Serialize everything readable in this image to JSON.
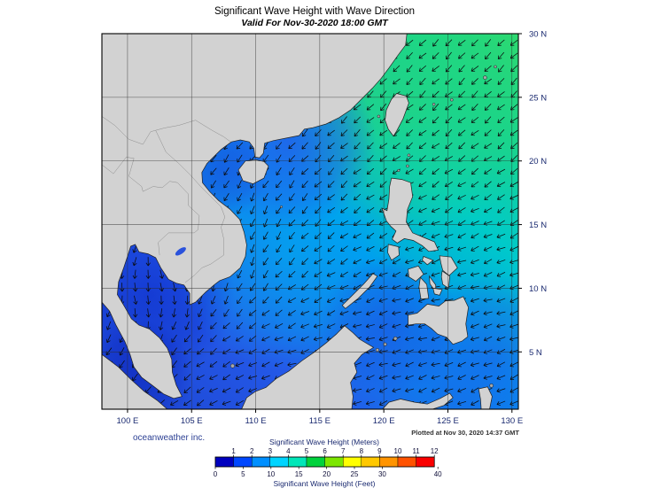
{
  "title": "Significant Wave Height with Wave Direction",
  "subtitle": "Valid For Nov-30-2020 18:00 GMT",
  "branding": "oceanweather inc.",
  "plotted_at": "Plotted at Nov 30, 2020 14:37 GMT",
  "axis": {
    "lon_ticks": [
      "100 E",
      "105 E",
      "110 E",
      "115 E",
      "120 E",
      "125 E",
      "130 E"
    ],
    "lat_ticks": [
      "30 N",
      "25 N",
      "20 N",
      "15 N",
      "10 N",
      "5 N"
    ]
  },
  "legend": {
    "meters_label": "Significant Wave Height (Meters)",
    "feet_label": "Significant Wave Height (Feet)",
    "meters_ticks": [
      1,
      2,
      3,
      4,
      5,
      6,
      7,
      8,
      9,
      10,
      11,
      12
    ],
    "feet_ticks": [
      0,
      5,
      10,
      15,
      20,
      25,
      30,
      40
    ],
    "colors": [
      "#0000bf",
      "#0047ff",
      "#008fff",
      "#00d4ff",
      "#00e6b8",
      "#00d23c",
      "#7ce600",
      "#ffff00",
      "#ffc800",
      "#ff9400",
      "#ff5200",
      "#fa0000"
    ]
  }
}
